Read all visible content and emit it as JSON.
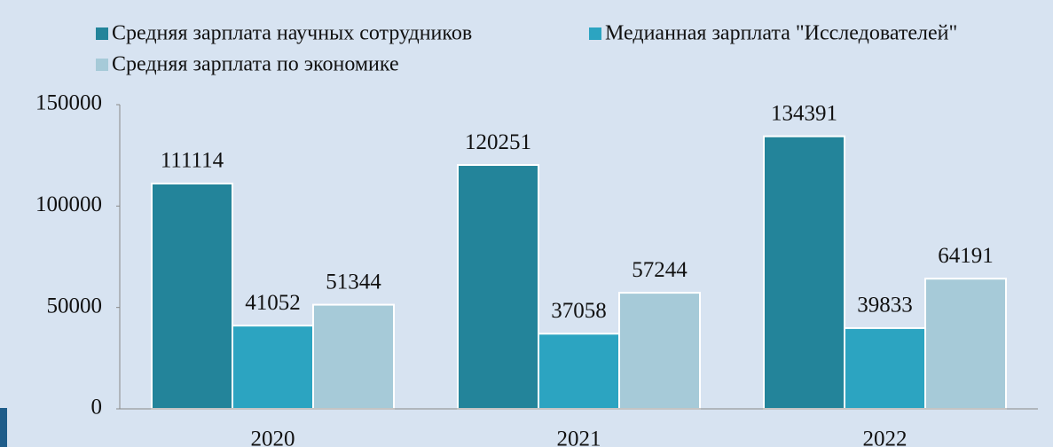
{
  "chart_data": {
    "type": "bar",
    "categories": [
      "2020",
      "2021",
      "2022"
    ],
    "series": [
      {
        "name": "Средняя зарплата научных сотрудников",
        "color": "#23849a",
        "values": [
          111114,
          120251,
          134391
        ]
      },
      {
        "name": "Медианная зарплата \"Исследователей\"",
        "color": "#2ca4c1",
        "values": [
          41052,
          37058,
          39833
        ]
      },
      {
        "name": "Средняя зарплата по экономике",
        "color": "#a6cad8",
        "values": [
          51344,
          57244,
          64191
        ]
      }
    ],
    "ylim": [
      0,
      150000
    ],
    "yticks": [
      0,
      50000,
      100000,
      150000
    ],
    "legend": "top"
  }
}
